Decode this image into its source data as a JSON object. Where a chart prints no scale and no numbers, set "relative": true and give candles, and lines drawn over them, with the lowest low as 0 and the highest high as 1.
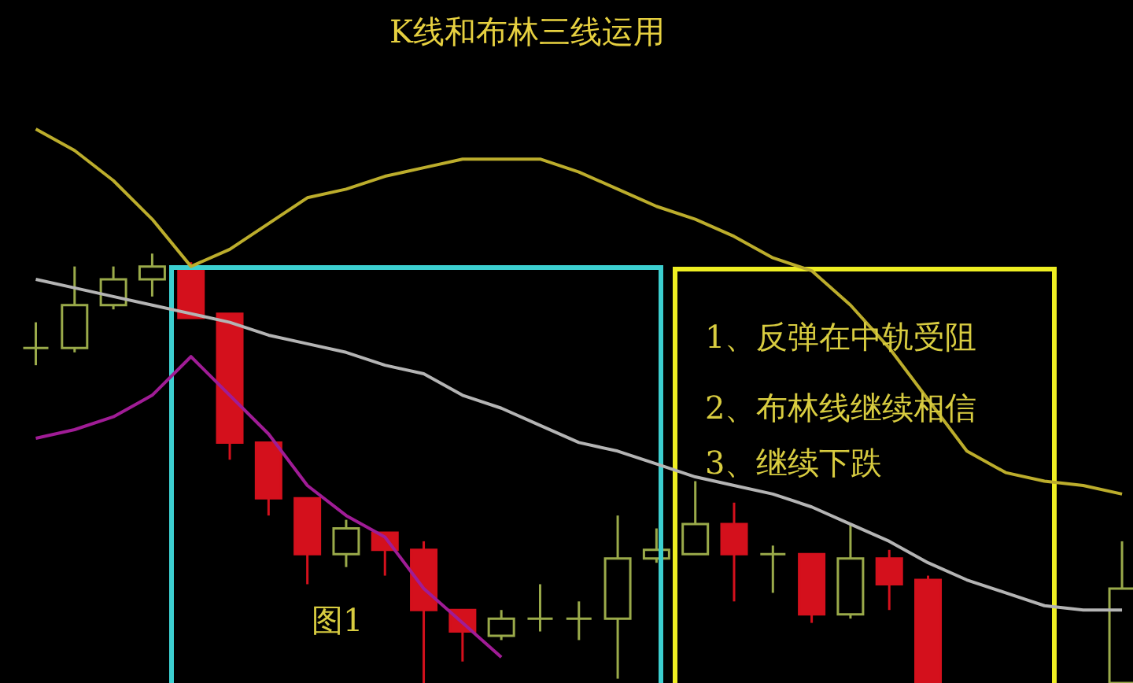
{
  "chart_data": {
    "type": "candlestick",
    "title": "K线和布林三线运用",
    "relative": true,
    "categories": [
      null,
      null,
      null,
      null,
      null,
      null,
      null,
      null,
      null,
      null,
      null,
      null,
      null,
      null,
      null,
      null,
      null,
      null,
      null,
      null,
      null,
      null,
      null,
      null,
      null,
      null,
      null,
      null,
      null
    ],
    "ohlc": [
      [
        0.78,
        0.84,
        0.74,
        0.78
      ],
      [
        0.78,
        0.97,
        0.77,
        0.88
      ],
      [
        0.88,
        0.97,
        0.87,
        0.94
      ],
      [
        0.94,
        1.0,
        0.9,
        0.97
      ],
      [
        0.96,
        0.98,
        0.85,
        0.85
      ],
      [
        0.86,
        0.86,
        0.52,
        0.56
      ],
      [
        0.56,
        0.56,
        0.39,
        0.43
      ],
      [
        0.43,
        0.43,
        0.23,
        0.3
      ],
      [
        0.3,
        0.38,
        0.27,
        0.36
      ],
      [
        0.35,
        0.35,
        0.25,
        0.31
      ],
      [
        0.31,
        0.33,
        0.0,
        0.17
      ],
      [
        0.17,
        0.17,
        0.05,
        0.12
      ],
      [
        0.11,
        0.17,
        0.1,
        0.15
      ],
      [
        0.15,
        0.23,
        0.12,
        0.15
      ],
      [
        0.15,
        0.19,
        0.1,
        0.15
      ],
      [
        0.15,
        0.39,
        0.01,
        0.29
      ],
      [
        0.29,
        0.36,
        0.28,
        0.31
      ],
      [
        0.3,
        0.47,
        0.3,
        0.37
      ],
      [
        0.37,
        0.42,
        0.19,
        0.3
      ],
      [
        0.3,
        0.32,
        0.21,
        0.3
      ],
      [
        0.3,
        0.3,
        0.14,
        0.16
      ],
      [
        0.16,
        0.37,
        0.15,
        0.29
      ],
      [
        0.29,
        0.31,
        0.17,
        0.23
      ],
      [
        0.24,
        0.25,
        0.0,
        0.0
      ],
      null,
      null,
      null,
      null,
      [
        0.0,
        0.33,
        0.0,
        0.22
      ]
    ],
    "colors": [
      "#9aaa4a",
      "#9aaa4a",
      "#9aaa4a",
      "#9aaa4a",
      "#d4101c",
      "#d4101c",
      "#d4101c",
      "#d4101c",
      "#9aaa4a",
      "#d4101c",
      "#d4101c",
      "#d4101c",
      "#9aaa4a",
      "#9aaa4a",
      "#9aaa4a",
      "#9aaa4a",
      "#9aaa4a",
      "#9aaa4a",
      "#d4101c",
      "#9aaa4a",
      "#d4101c",
      "#9aaa4a",
      "#d4101c",
      "#d4101c",
      null,
      null,
      null,
      null,
      "#9aaa4a"
    ],
    "series": [
      {
        "type": "line",
        "color": "#bcad2c",
        "values": [
          1.29,
          1.24,
          1.17,
          1.08,
          0.97,
          1.01,
          1.07,
          1.13,
          1.15,
          1.18,
          1.2,
          1.22,
          1.22,
          1.22,
          1.19,
          1.15,
          1.11,
          1.08,
          1.04,
          0.99,
          0.96,
          0.88,
          0.78,
          0.66,
          0.54,
          0.49,
          0.47,
          0.46,
          0.44
        ]
      },
      {
        "type": "line",
        "color": "#b4b4b4",
        "values": [
          0.94,
          0.92,
          0.9,
          0.88,
          0.86,
          0.84,
          0.81,
          0.79,
          0.77,
          0.74,
          0.72,
          0.67,
          0.64,
          0.6,
          0.56,
          0.54,
          0.51,
          0.48,
          0.46,
          0.44,
          0.41,
          0.37,
          0.33,
          0.28,
          0.24,
          0.21,
          0.18,
          0.17,
          0.17
        ]
      },
      {
        "type": "line",
        "color": "#a01c96",
        "values": [
          0.57,
          0.59,
          0.62,
          0.67,
          0.76,
          0.67,
          0.58,
          0.46,
          0.39,
          0.34,
          0.22,
          0.14,
          0.06,
          null,
          null,
          null,
          null,
          null,
          null,
          null,
          null,
          null,
          null,
          null,
          null,
          null,
          null,
          null,
          null
        ]
      }
    ],
    "annotations": [
      "1、反弹在中轨受阻",
      "2、布林线继续相信",
      "3、继续下跌",
      "图1"
    ]
  }
}
